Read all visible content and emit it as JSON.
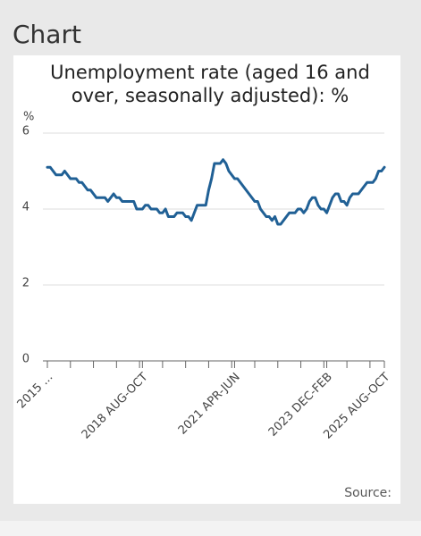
{
  "heading": "Chart",
  "source": "Source:",
  "chart_data": {
    "type": "line",
    "title": "Unemployment rate (aged 16 and over, seasonally adjusted): %",
    "y_label": "%",
    "color": "#206095",
    "grid": true,
    "ylim": [
      0,
      6
    ],
    "yticks": [
      0,
      2,
      4,
      6
    ],
    "categories": [
      "2015 ...",
      null,
      null,
      null,
      null,
      null,
      null,
      null,
      null,
      null,
      null,
      null,
      null,
      null,
      null,
      null,
      null,
      null,
      null,
      null,
      null,
      null,
      null,
      null,
      null,
      null,
      null,
      null,
      null,
      null,
      null,
      null,
      null,
      "2018 AUG-OCT",
      null,
      null,
      null,
      null,
      null,
      null,
      null,
      null,
      null,
      null,
      null,
      null,
      null,
      null,
      null,
      null,
      null,
      null,
      null,
      null,
      null,
      null,
      null,
      null,
      null,
      null,
      null,
      null,
      null,
      null,
      null,
      "2021 APR-JUN",
      null,
      null,
      null,
      null,
      null,
      null,
      null,
      null,
      null,
      null,
      null,
      null,
      null,
      null,
      null,
      null,
      null,
      null,
      null,
      null,
      null,
      null,
      null,
      null,
      null,
      null,
      null,
      null,
      null,
      null,
      null,
      "2023 DEC-FEB",
      null,
      null,
      null,
      null,
      null,
      null,
      null,
      null,
      null,
      null,
      null,
      null,
      null,
      null,
      null,
      null,
      null,
      null,
      null,
      "2025 AUG-OCT"
    ],
    "values": [
      5.1,
      5.1,
      5.0,
      4.9,
      4.9,
      4.9,
      5.0,
      4.9,
      4.8,
      4.8,
      4.8,
      4.7,
      4.7,
      4.6,
      4.5,
      4.5,
      4.4,
      4.3,
      4.3,
      4.3,
      4.3,
      4.2,
      4.3,
      4.4,
      4.3,
      4.3,
      4.2,
      4.2,
      4.2,
      4.2,
      4.2,
      4.0,
      4.0,
      4.0,
      4.1,
      4.1,
      4.0,
      4.0,
      4.0,
      3.9,
      3.9,
      4.0,
      3.8,
      3.8,
      3.8,
      3.9,
      3.9,
      3.9,
      3.8,
      3.8,
      3.7,
      3.9,
      4.1,
      4.1,
      4.1,
      4.1,
      4.5,
      4.8,
      5.2,
      5.2,
      5.2,
      5.3,
      5.2,
      5.0,
      4.9,
      4.8,
      4.8,
      4.7,
      4.6,
      4.5,
      4.4,
      4.3,
      4.2,
      4.2,
      4.0,
      3.9,
      3.8,
      3.8,
      3.7,
      3.8,
      3.6,
      3.6,
      3.7,
      3.8,
      3.9,
      3.9,
      3.9,
      4.0,
      4.0,
      3.9,
      4.0,
      4.2,
      4.3,
      4.3,
      4.1,
      4.0,
      4.0,
      3.9,
      4.1,
      4.3,
      4.4,
      4.4,
      4.2,
      4.2,
      4.1,
      4.3,
      4.4,
      4.4,
      4.4,
      4.5,
      4.6,
      4.7,
      4.7,
      4.7,
      4.8,
      5.0,
      5.0,
      5.1
    ]
  }
}
